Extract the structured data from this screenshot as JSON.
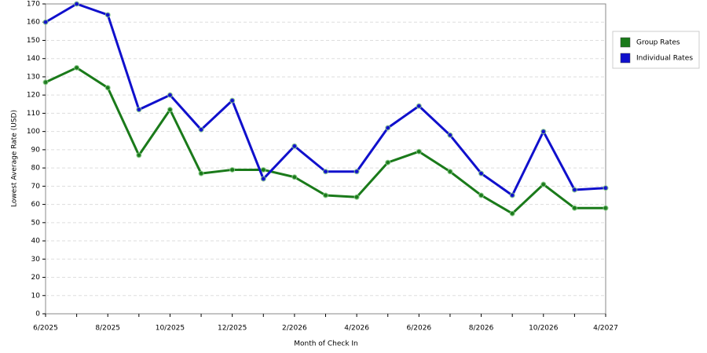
{
  "chart_data": {
    "type": "line",
    "x_label": "Month of Check In",
    "y_label": "Lowest Average Rate (USD)",
    "categories": [
      "6/2025",
      null,
      "8/2025",
      null,
      "10/2025",
      null,
      "12/2025",
      null,
      "2/2026",
      null,
      "4/2026",
      null,
      "6/2026",
      null,
      "8/2026",
      null,
      "10/2026",
      null,
      "4/2027"
    ],
    "series": [
      {
        "name": "Group Rates",
        "color": "#1a7a1a",
        "values": [
          127,
          135,
          124,
          87,
          112,
          77,
          79,
          79,
          75,
          65,
          64,
          83,
          89,
          78,
          65,
          55,
          71,
          58,
          58
        ]
      },
      {
        "name": "Individual Rates",
        "color": "#1010cc",
        "values": [
          160,
          170,
          164,
          112,
          120,
          101,
          117,
          74,
          92,
          78,
          78,
          102,
          114,
          98,
          77,
          65,
          100,
          68,
          69
        ]
      }
    ],
    "ylim": [
      0,
      170
    ],
    "yticks": [
      0,
      10,
      20,
      30,
      40,
      50,
      60,
      70,
      80,
      90,
      100,
      110,
      120,
      130,
      140,
      150,
      160,
      170
    ],
    "grid": true,
    "legend": "right"
  }
}
